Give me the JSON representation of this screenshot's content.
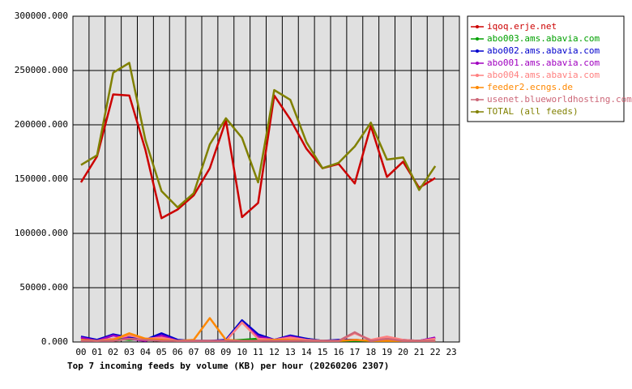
{
  "chart_data": {
    "type": "line",
    "title": "Top 7 incoming feeds by volume (KB) per hour (20260206 2307)",
    "categories": [
      "00",
      "01",
      "02",
      "03",
      "04",
      "05",
      "06",
      "07",
      "08",
      "09",
      "10",
      "11",
      "12",
      "13",
      "14",
      "15",
      "16",
      "17",
      "18",
      "19",
      "20",
      "21",
      "22",
      "23"
    ],
    "ylim": [
      0,
      300000
    ],
    "yticks": [
      {
        "value": 0,
        "label": "0.000"
      },
      {
        "value": 50000,
        "label": "50000.000"
      },
      {
        "value": 100000,
        "label": "100000.000"
      },
      {
        "value": 150000,
        "label": "150000.000"
      },
      {
        "value": 200000,
        "label": "200000.000"
      },
      {
        "value": 250000,
        "label": "250000.000"
      },
      {
        "value": 300000,
        "label": "300000.000"
      }
    ],
    "grid": true,
    "series": [
      {
        "name": "iqoq.erje.net",
        "color": "#cc0000",
        "values": [
          147000,
          171000,
          228000,
          227000,
          177000,
          114000,
          122000,
          135000,
          160000,
          204000,
          115000,
          128000,
          227000,
          205000,
          178000,
          160000,
          164000,
          146000,
          199000,
          152000,
          166000,
          142000,
          151000,
          null
        ]
      },
      {
        "name": "abo003.ams.abavia.com",
        "color": "#00a000",
        "values": [
          2000,
          1000,
          3000,
          2000,
          3000,
          2000,
          1000,
          1000,
          1000,
          1000,
          2000,
          3000,
          2000,
          4000,
          3000,
          1000,
          1000,
          1000,
          1000,
          1000,
          1000,
          1000,
          1000,
          null
        ]
      },
      {
        "name": "abo002.ams.abavia.com",
        "color": "#0000cc",
        "values": [
          5000,
          2000,
          7000,
          4000,
          2000,
          8000,
          2000,
          1000,
          1000,
          2000,
          20000,
          7000,
          2000,
          6000,
          3000,
          1000,
          2000,
          2000,
          1000,
          2000,
          2000,
          1000,
          4000,
          null
        ]
      },
      {
        "name": "abo001.ams.abavia.com",
        "color": "#a000c0",
        "values": [
          4000,
          1000,
          6000,
          3000,
          1000,
          6000,
          1000,
          1000,
          1000,
          1000,
          18000,
          5000,
          2000,
          5000,
          2000,
          1000,
          1000,
          2000,
          1000,
          2000,
          1000,
          1000,
          4000,
          null
        ]
      },
      {
        "name": "abo004.ams.abavia.com",
        "color": "#ff8080",
        "values": [
          2000,
          1000,
          3000,
          6000,
          3000,
          4000,
          1000,
          1000,
          1000,
          1000,
          18000,
          3000,
          2000,
          4000,
          2000,
          1000,
          1000,
          8000,
          2000,
          5000,
          2000,
          1000,
          3000,
          null
        ]
      },
      {
        "name": "feeder2.ecngs.de",
        "color": "#ff8800",
        "values": [
          2000,
          1000,
          2000,
          8000,
          3000,
          2000,
          1000,
          2000,
          22000,
          2000,
          1000,
          1000,
          2000,
          2000,
          1000,
          1000,
          1000,
          2000,
          1000,
          1000,
          1000,
          1000,
          1000,
          null
        ]
      },
      {
        "name": "usenet.blueworldhosting.com",
        "color": "#cc6677",
        "values": [
          1000,
          1000,
          1000,
          3000,
          2000,
          1000,
          1000,
          1000,
          1000,
          1000,
          1000,
          1000,
          1000,
          1000,
          1000,
          1000,
          1000,
          9000,
          1000,
          3000,
          1000,
          1000,
          1000,
          null
        ]
      },
      {
        "name": "TOTAL (all feeds)",
        "color": "#808000",
        "values": [
          163000,
          172000,
          248000,
          257000,
          186000,
          139000,
          124000,
          137000,
          182000,
          206000,
          188000,
          147000,
          232000,
          223000,
          184000,
          160000,
          165000,
          180000,
          202000,
          168000,
          170000,
          140000,
          162000,
          null
        ]
      }
    ]
  }
}
